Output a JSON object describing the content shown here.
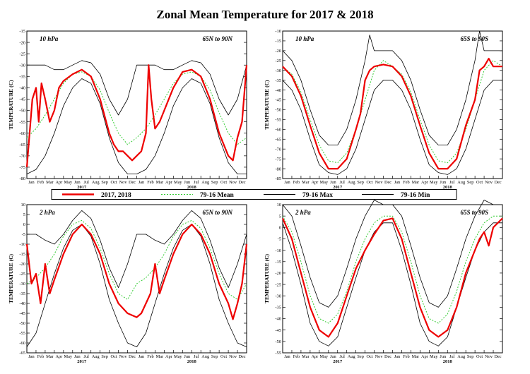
{
  "title": "Zonal Mean Temperature for 2017 & 2018",
  "colors": {
    "series_2017_2018": "#ee0000",
    "mean": "#33cc33",
    "max": "#000000",
    "min": "#000000"
  },
  "legend": {
    "placement": "middle",
    "entries": [
      "2017, 2018",
      "79-16 Mean",
      "79-16 Max",
      "79-16 Min"
    ]
  },
  "months": [
    "Jan",
    "Feb",
    "Mar",
    "Apr",
    "May",
    "Jun",
    "Jul",
    "Aug",
    "Sep",
    "Oct",
    "Nov",
    "Dec"
  ],
  "years": [
    "2017",
    "2018"
  ],
  "chart_data": [
    {
      "type": "line",
      "level": "10 hPa",
      "region": "65N to 90N",
      "ylabel": "TEMPERATURE (C)",
      "ylim": [
        -80,
        -15
      ],
      "yticks": [
        -80,
        -75,
        -70,
        -65,
        -60,
        -55,
        -50,
        -45,
        -40,
        -35,
        -30,
        -25,
        -20,
        -15
      ],
      "x_unit": "month index from Jan 2017 (0-24)",
      "series": [
        {
          "name": "2017, 2018",
          "x": [
            0,
            0.3,
            0.6,
            1,
            1.3,
            1.6,
            2,
            2.5,
            3,
            3.5,
            4,
            5,
            6,
            7,
            8,
            9,
            9.5,
            10,
            10.5,
            11,
            11.5,
            12,
            12.5,
            13,
            13.3,
            13.6,
            14,
            14.5,
            15,
            16,
            17,
            18,
            19,
            20,
            21,
            21.5,
            22,
            22.5,
            23,
            23.5,
            24
          ],
          "y": [
            -75,
            -60,
            -45,
            -40,
            -55,
            -38,
            -45,
            -55,
            -50,
            -40,
            -37,
            -34,
            -32,
            -35,
            -45,
            -60,
            -65,
            -68,
            -68,
            -70,
            -72,
            -70,
            -68,
            -60,
            -30,
            -45,
            -58,
            -55,
            -50,
            -40,
            -33,
            -32,
            -35,
            -45,
            -60,
            -65,
            -70,
            -72,
            -62,
            -55,
            -30
          ]
        },
        {
          "name": "79-16 Mean",
          "x": [
            0,
            1,
            2,
            3,
            4,
            5,
            6,
            7,
            8,
            9,
            10,
            11,
            12,
            13,
            14,
            15,
            16,
            17,
            18,
            19,
            20,
            21,
            22,
            23,
            24
          ],
          "y": [
            -62,
            -58,
            -52,
            -45,
            -38,
            -34,
            -33,
            -35,
            -41,
            -51,
            -60,
            -65,
            -62,
            -58,
            -52,
            -45,
            -38,
            -34,
            -33,
            -35,
            -41,
            -51,
            -60,
            -65,
            -62
          ]
        },
        {
          "name": "79-16 Max",
          "x": [
            0,
            1,
            2,
            3,
            4,
            5,
            6,
            7,
            8,
            9,
            10,
            11,
            12,
            13,
            14,
            15,
            16,
            17,
            18,
            19,
            20,
            21,
            22,
            23,
            24
          ],
          "y": [
            -30,
            -30,
            -30,
            -32,
            -32,
            -30,
            -28,
            -29,
            -34,
            -45,
            -52,
            -45,
            -30,
            -30,
            -30,
            -32,
            -32,
            -30,
            -28,
            -29,
            -34,
            -45,
            -52,
            -45,
            -30
          ]
        },
        {
          "name": "79-16 Min",
          "x": [
            0,
            1,
            2,
            3,
            4,
            5,
            6,
            7,
            8,
            9,
            10,
            11,
            12,
            13,
            14,
            15,
            16,
            17,
            18,
            19,
            20,
            21,
            22,
            23,
            24
          ],
          "y": [
            -78,
            -76,
            -70,
            -60,
            -48,
            -40,
            -36,
            -38,
            -47,
            -62,
            -73,
            -78,
            -78,
            -76,
            -70,
            -60,
            -48,
            -40,
            -36,
            -38,
            -47,
            -62,
            -73,
            -78,
            -78
          ]
        }
      ]
    },
    {
      "type": "line",
      "level": "10 hPa",
      "region": "65S to 90S",
      "ylabel": "TEMPERATURE (C)",
      "ylim": [
        -85,
        -10
      ],
      "yticks": [
        -85,
        -80,
        -75,
        -70,
        -65,
        -60,
        -55,
        -50,
        -45,
        -40,
        -35,
        -30,
        -25,
        -20,
        -15,
        -10
      ],
      "x_unit": "month index from Jan 2017 (0-24)",
      "series": [
        {
          "name": "2017, 2018",
          "x": [
            0,
            1,
            2,
            3,
            4,
            5,
            6,
            7,
            8,
            8.5,
            9,
            9.5,
            10,
            11,
            12,
            13,
            14,
            15,
            16,
            17,
            18,
            19,
            20,
            21,
            21.5,
            22,
            22.5,
            23,
            24
          ],
          "y": [
            -28,
            -33,
            -43,
            -58,
            -72,
            -80,
            -80,
            -75,
            -60,
            -52,
            -35,
            -30,
            -28,
            -27,
            -28,
            -33,
            -43,
            -58,
            -72,
            -80,
            -80,
            -75,
            -58,
            -45,
            -30,
            -28,
            -24,
            -28,
            -28
          ]
        },
        {
          "name": "79-16 Mean",
          "x": [
            0,
            1,
            2,
            3,
            4,
            5,
            6,
            7,
            8,
            9,
            10,
            11,
            12,
            13,
            14,
            15,
            16,
            17,
            18,
            19,
            20,
            21,
            22,
            23,
            24
          ],
          "y": [
            -28,
            -32,
            -41,
            -55,
            -68,
            -76,
            -77,
            -72,
            -60,
            -45,
            -30,
            -25,
            -28,
            -32,
            -41,
            -55,
            -68,
            -76,
            -77,
            -72,
            -60,
            -45,
            -30,
            -25,
            -28
          ]
        },
        {
          "name": "79-16 Max",
          "x": [
            0,
            1,
            2,
            3,
            4,
            5,
            6,
            7,
            8,
            8.5,
            9,
            9.5,
            10,
            11,
            12,
            13,
            14,
            15,
            16,
            17,
            18,
            19,
            20,
            20.5,
            21,
            21.5,
            22,
            23,
            24
          ],
          "y": [
            -20,
            -25,
            -35,
            -50,
            -63,
            -68,
            -68,
            -60,
            -45,
            -35,
            -25,
            -12,
            -20,
            -20,
            -20,
            -25,
            -35,
            -50,
            -63,
            -68,
            -68,
            -60,
            -45,
            -35,
            -25,
            -10,
            -20,
            -20,
            -20
          ]
        },
        {
          "name": "79-16 Min",
          "x": [
            0,
            1,
            2,
            3,
            4,
            5,
            6,
            7,
            8,
            9,
            10,
            11,
            12,
            13,
            14,
            15,
            16,
            17,
            18,
            19,
            20,
            21,
            22,
            23,
            24
          ],
          "y": [
            -35,
            -40,
            -50,
            -65,
            -78,
            -82,
            -83,
            -80,
            -70,
            -55,
            -40,
            -35,
            -35,
            -40,
            -50,
            -65,
            -78,
            -82,
            -83,
            -80,
            -70,
            -55,
            -40,
            -35,
            -35
          ]
        }
      ]
    },
    {
      "type": "line",
      "level": "2 hPa",
      "region": "65N to 90N",
      "ylabel": "TEMPERATURE (C)",
      "ylim": [
        -65,
        10
      ],
      "yticks": [
        -65,
        -60,
        -55,
        -50,
        -45,
        -40,
        -35,
        -30,
        -25,
        -20,
        -15,
        -10,
        -5,
        0,
        5,
        10
      ],
      "x_unit": "month index from Jan 2017 (0-24)",
      "series": [
        {
          "name": "2017, 2018",
          "x": [
            0,
            0.5,
            1,
            1.5,
            2,
            2.5,
            3,
            4,
            5,
            6,
            7,
            8,
            9,
            10,
            11,
            12,
            12.5,
            13,
            13.5,
            14,
            14.5,
            15,
            16,
            17,
            18,
            19,
            20,
            21,
            22,
            22.5,
            23,
            23.5,
            24
          ],
          "y": [
            -10,
            -30,
            -25,
            -40,
            -20,
            -35,
            -28,
            -15,
            -5,
            0,
            -5,
            -15,
            -30,
            -40,
            -45,
            -47,
            -45,
            -40,
            -35,
            -20,
            -35,
            -28,
            -15,
            -5,
            0,
            -5,
            -15,
            -30,
            -40,
            -48,
            -40,
            -30,
            -10
          ]
        },
        {
          "name": "79-16 Mean",
          "x": [
            0,
            1,
            2,
            3,
            4,
            5,
            6,
            7,
            8,
            9,
            10,
            11,
            12,
            13,
            14,
            15,
            16,
            17,
            18,
            19,
            20,
            21,
            22,
            23,
            24
          ],
          "y": [
            -30,
            -27,
            -22,
            -15,
            -6,
            0,
            2,
            -2,
            -12,
            -25,
            -35,
            -38,
            -30,
            -27,
            -22,
            -15,
            -6,
            0,
            2,
            -2,
            -12,
            -25,
            -35,
            -38,
            -30
          ]
        },
        {
          "name": "79-16 Max",
          "x": [
            0,
            1,
            2,
            3,
            4,
            5,
            6,
            7,
            8,
            9,
            10,
            11,
            12,
            13,
            14,
            15,
            16,
            17,
            18,
            19,
            20,
            21,
            22,
            23,
            24
          ],
          "y": [
            -5,
            -5,
            -8,
            -10,
            -5,
            2,
            7,
            3,
            -8,
            -22,
            -32,
            -20,
            -5,
            -5,
            -8,
            -10,
            -5,
            2,
            7,
            3,
            -8,
            -22,
            -32,
            -20,
            -5
          ]
        },
        {
          "name": "79-16 Min",
          "x": [
            0,
            1,
            2,
            3,
            4,
            5,
            6,
            7,
            8,
            9,
            10,
            11,
            12,
            13,
            14,
            15,
            16,
            17,
            18,
            19,
            20,
            21,
            22,
            23,
            24
          ],
          "y": [
            -62,
            -55,
            -40,
            -25,
            -12,
            -3,
            0,
            -6,
            -20,
            -38,
            -50,
            -60,
            -62,
            -55,
            -40,
            -25,
            -12,
            -3,
            0,
            -6,
            -20,
            -38,
            -50,
            -60,
            -62
          ]
        }
      ]
    },
    {
      "type": "line",
      "level": "2 hPa",
      "region": "65S to 90S",
      "ylabel": "TEMPERATURE (C)",
      "ylim": [
        -55,
        10
      ],
      "yticks": [
        -55,
        -50,
        -45,
        -40,
        -35,
        -30,
        -25,
        -20,
        -15,
        -10,
        -5,
        0,
        5,
        10
      ],
      "x_unit": "month index from Jan 2017 (0-24)",
      "series": [
        {
          "name": "2017, 2018",
          "x": [
            0,
            1,
            2,
            3,
            4,
            5,
            6,
            7,
            8,
            9,
            10,
            11,
            12,
            13,
            14,
            15,
            16,
            17,
            18,
            19,
            20,
            21,
            21.5,
            22,
            22.5,
            23,
            24
          ],
          "y": [
            4,
            -5,
            -20,
            -35,
            -45,
            -48,
            -42,
            -30,
            -18,
            -10,
            -3,
            3,
            4,
            -5,
            -20,
            -35,
            -45,
            -48,
            -45,
            -35,
            -20,
            -10,
            -5,
            -2,
            -8,
            0,
            4
          ]
        },
        {
          "name": "79-16 Mean",
          "x": [
            0,
            1,
            2,
            3,
            4,
            5,
            6,
            7,
            8,
            9,
            10,
            11,
            12,
            13,
            14,
            15,
            16,
            17,
            18,
            19,
            20,
            21,
            22,
            23,
            24
          ],
          "y": [
            5,
            -2,
            -15,
            -30,
            -40,
            -42,
            -38,
            -28,
            -15,
            -5,
            2,
            5,
            5,
            -2,
            -15,
            -30,
            -40,
            -42,
            -38,
            -28,
            -15,
            -5,
            2,
            5,
            5
          ]
        },
        {
          "name": "79-16 Max",
          "x": [
            0,
            1,
            2,
            3,
            4,
            5,
            6,
            7,
            8,
            9,
            10,
            11,
            12,
            13,
            14,
            15,
            16,
            17,
            18,
            19,
            20,
            21,
            22,
            23,
            24
          ],
          "y": [
            10,
            5,
            -8,
            -22,
            -33,
            -35,
            -30,
            -18,
            -5,
            5,
            12,
            10,
            10,
            5,
            -8,
            -22,
            -33,
            -35,
            -30,
            -18,
            -5,
            5,
            12,
            10,
            10
          ]
        },
        {
          "name": "79-16 Min",
          "x": [
            0,
            1,
            2,
            3,
            4,
            5,
            6,
            7,
            8,
            9,
            10,
            11,
            12,
            13,
            14,
            15,
            16,
            17,
            18,
            19,
            20,
            21,
            22,
            23,
            24
          ],
          "y": [
            2,
            -10,
            -25,
            -42,
            -50,
            -52,
            -48,
            -35,
            -22,
            -10,
            -2,
            2,
            2,
            -10,
            -25,
            -42,
            -50,
            -52,
            -48,
            -35,
            -22,
            -10,
            -2,
            2,
            2
          ]
        }
      ]
    }
  ]
}
